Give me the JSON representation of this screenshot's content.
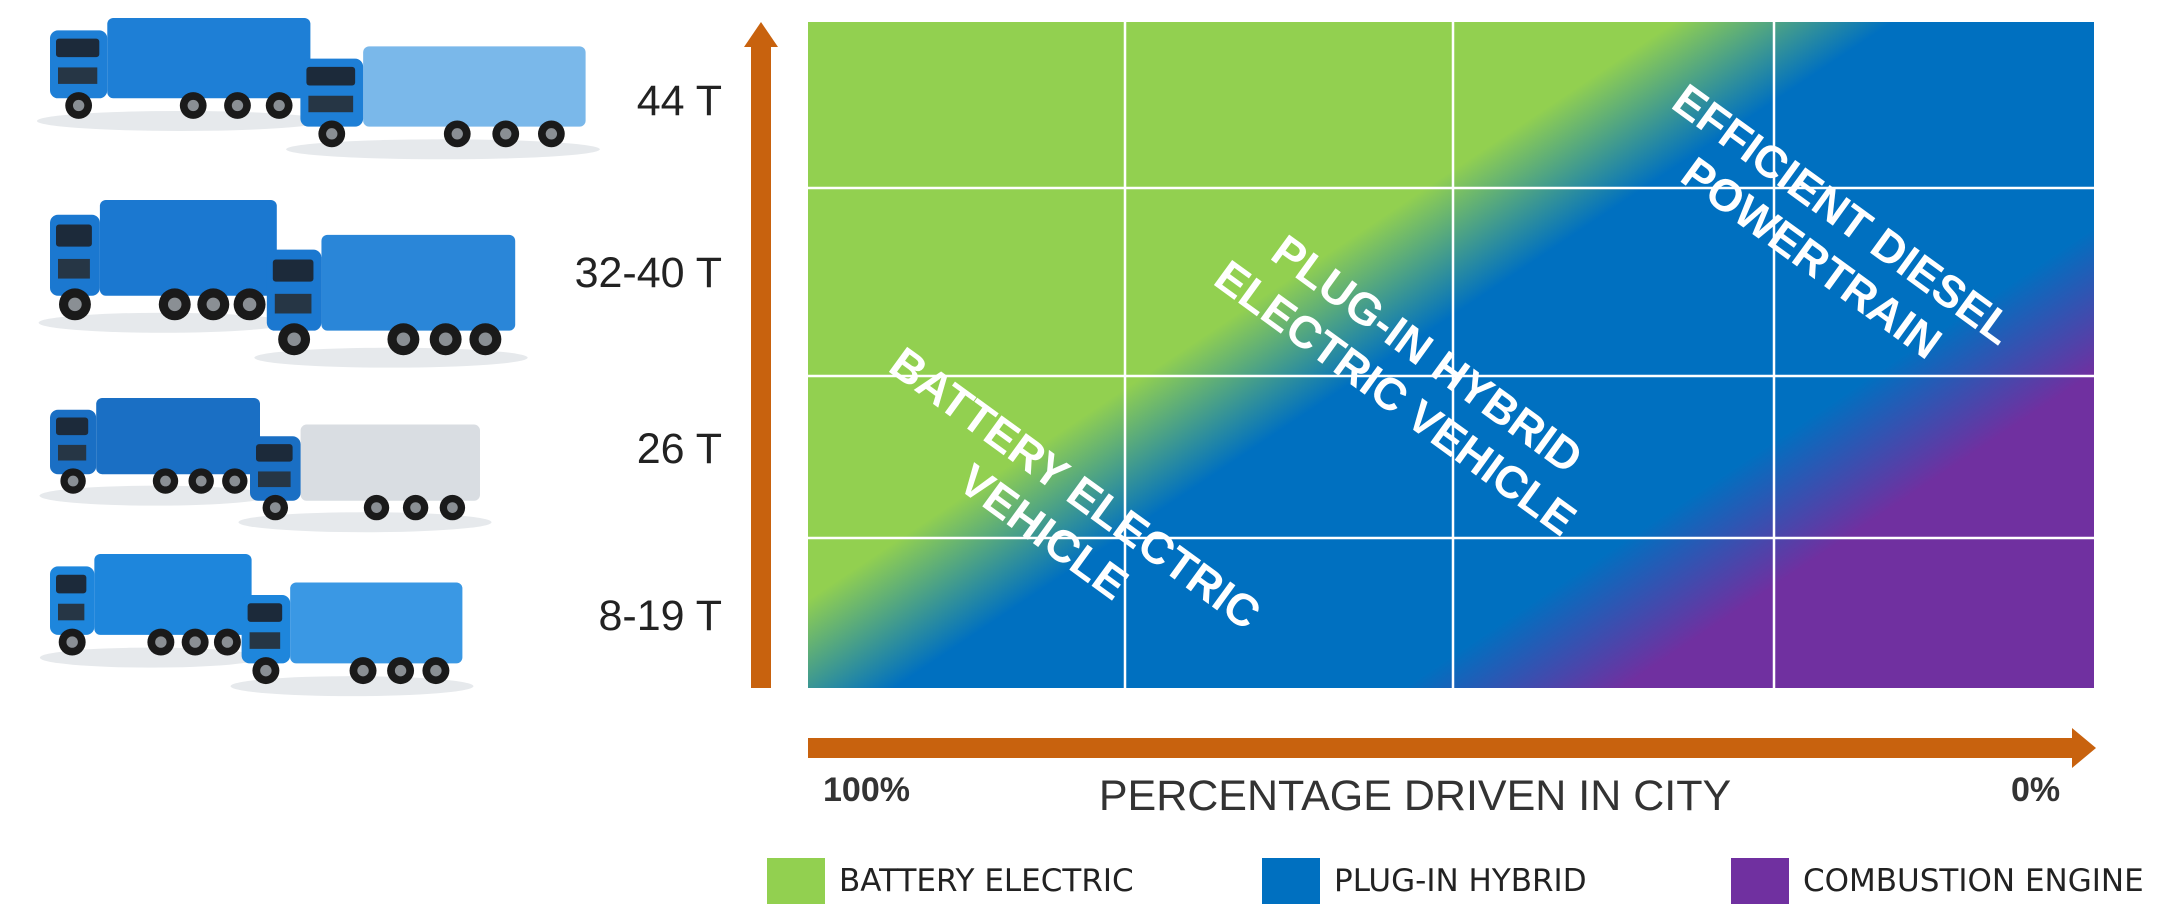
{
  "weight_classes": [
    "44 T",
    "32-40 T",
    "26 T",
    "8-19 T"
  ],
  "x_axis": {
    "title": "PERCENTAGE DRIVEN IN CITY",
    "left_label": "100%",
    "right_label": "0%"
  },
  "zones": {
    "battery": [
      "BATTERY ELECTRIC",
      "VEHICLE"
    ],
    "hybrid": [
      "PLUG-IN HYBRID",
      "ELECTRIC VEHICLE"
    ],
    "diesel": [
      "EFFICIENT DIESEL",
      "POWERTRAIN"
    ]
  },
  "legend": [
    {
      "label": "BATTERY ELECTRIC",
      "color": "#92d050"
    },
    {
      "label": "PLUG-IN HYBRID",
      "color": "#0070c0"
    },
    {
      "label": "COMBUSTION ENGINE",
      "color": "#7030a0"
    }
  ],
  "colors": {
    "axis_arrow": "#c8620e",
    "battery": "#92d050",
    "hybrid": "#0070c0",
    "combustion": "#7030a0"
  },
  "truck_illustrations": [
    {
      "name": "truck-pair-44t",
      "cab": "#1e7fd6",
      "trailer": "#7ab8ea"
    },
    {
      "name": "truck-pair-32-40t",
      "cab": "#1b78d0",
      "trailer": "#2a86d8"
    },
    {
      "name": "truck-pair-26t",
      "cab": "#1a6fc4",
      "trailer": "#d9dde2"
    },
    {
      "name": "truck-pair-8-19t",
      "cab": "#1e86dc",
      "trailer": "#3a98e4"
    }
  ]
}
